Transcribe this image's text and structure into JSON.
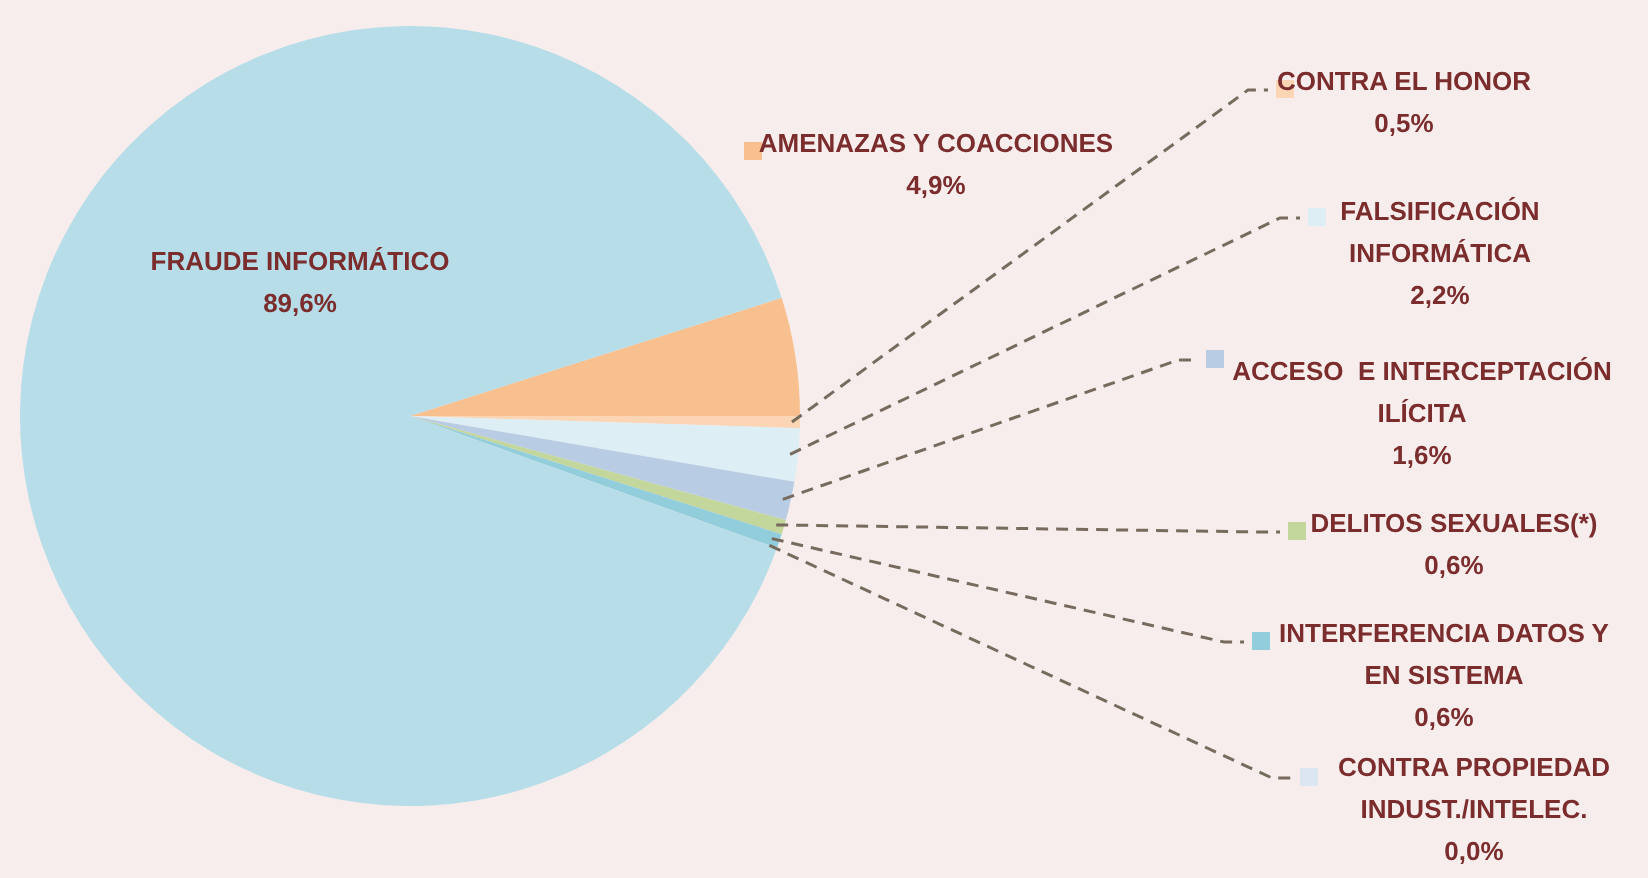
{
  "chart_data": {
    "type": "pie",
    "categories": [
      "AMENAZAS Y COACCIONES",
      "CONTRA EL HONOR",
      "FALSIFICACIÓN INFORMÁTICA",
      "ACCESO  E INTERCEPTACIÓN ILÍCITA",
      "DELITOS SEXUALES(*)",
      "INTERFERENCIA DATOS Y EN SISTEMA",
      "CONTRA PROPIEDAD INDUST./INTELEC.",
      "FRAUDE INFORMÁTICO"
    ],
    "values": [
      4.9,
      0.5,
      2.2,
      1.6,
      0.6,
      0.6,
      0.0,
      89.6
    ],
    "colors": [
      "#f9c08f",
      "#fcd5b4",
      "#ddeef5",
      "#b8cce4",
      "#c3d69b",
      "#92cddc",
      "#dce6f2",
      "#b6dde8"
    ],
    "value_labels": [
      "4,9%",
      "0,5%",
      "2,2%",
      "1,6%",
      "0,6%",
      "0,6%",
      "0,0%",
      "89,6%"
    ],
    "legend": "right"
  }
}
